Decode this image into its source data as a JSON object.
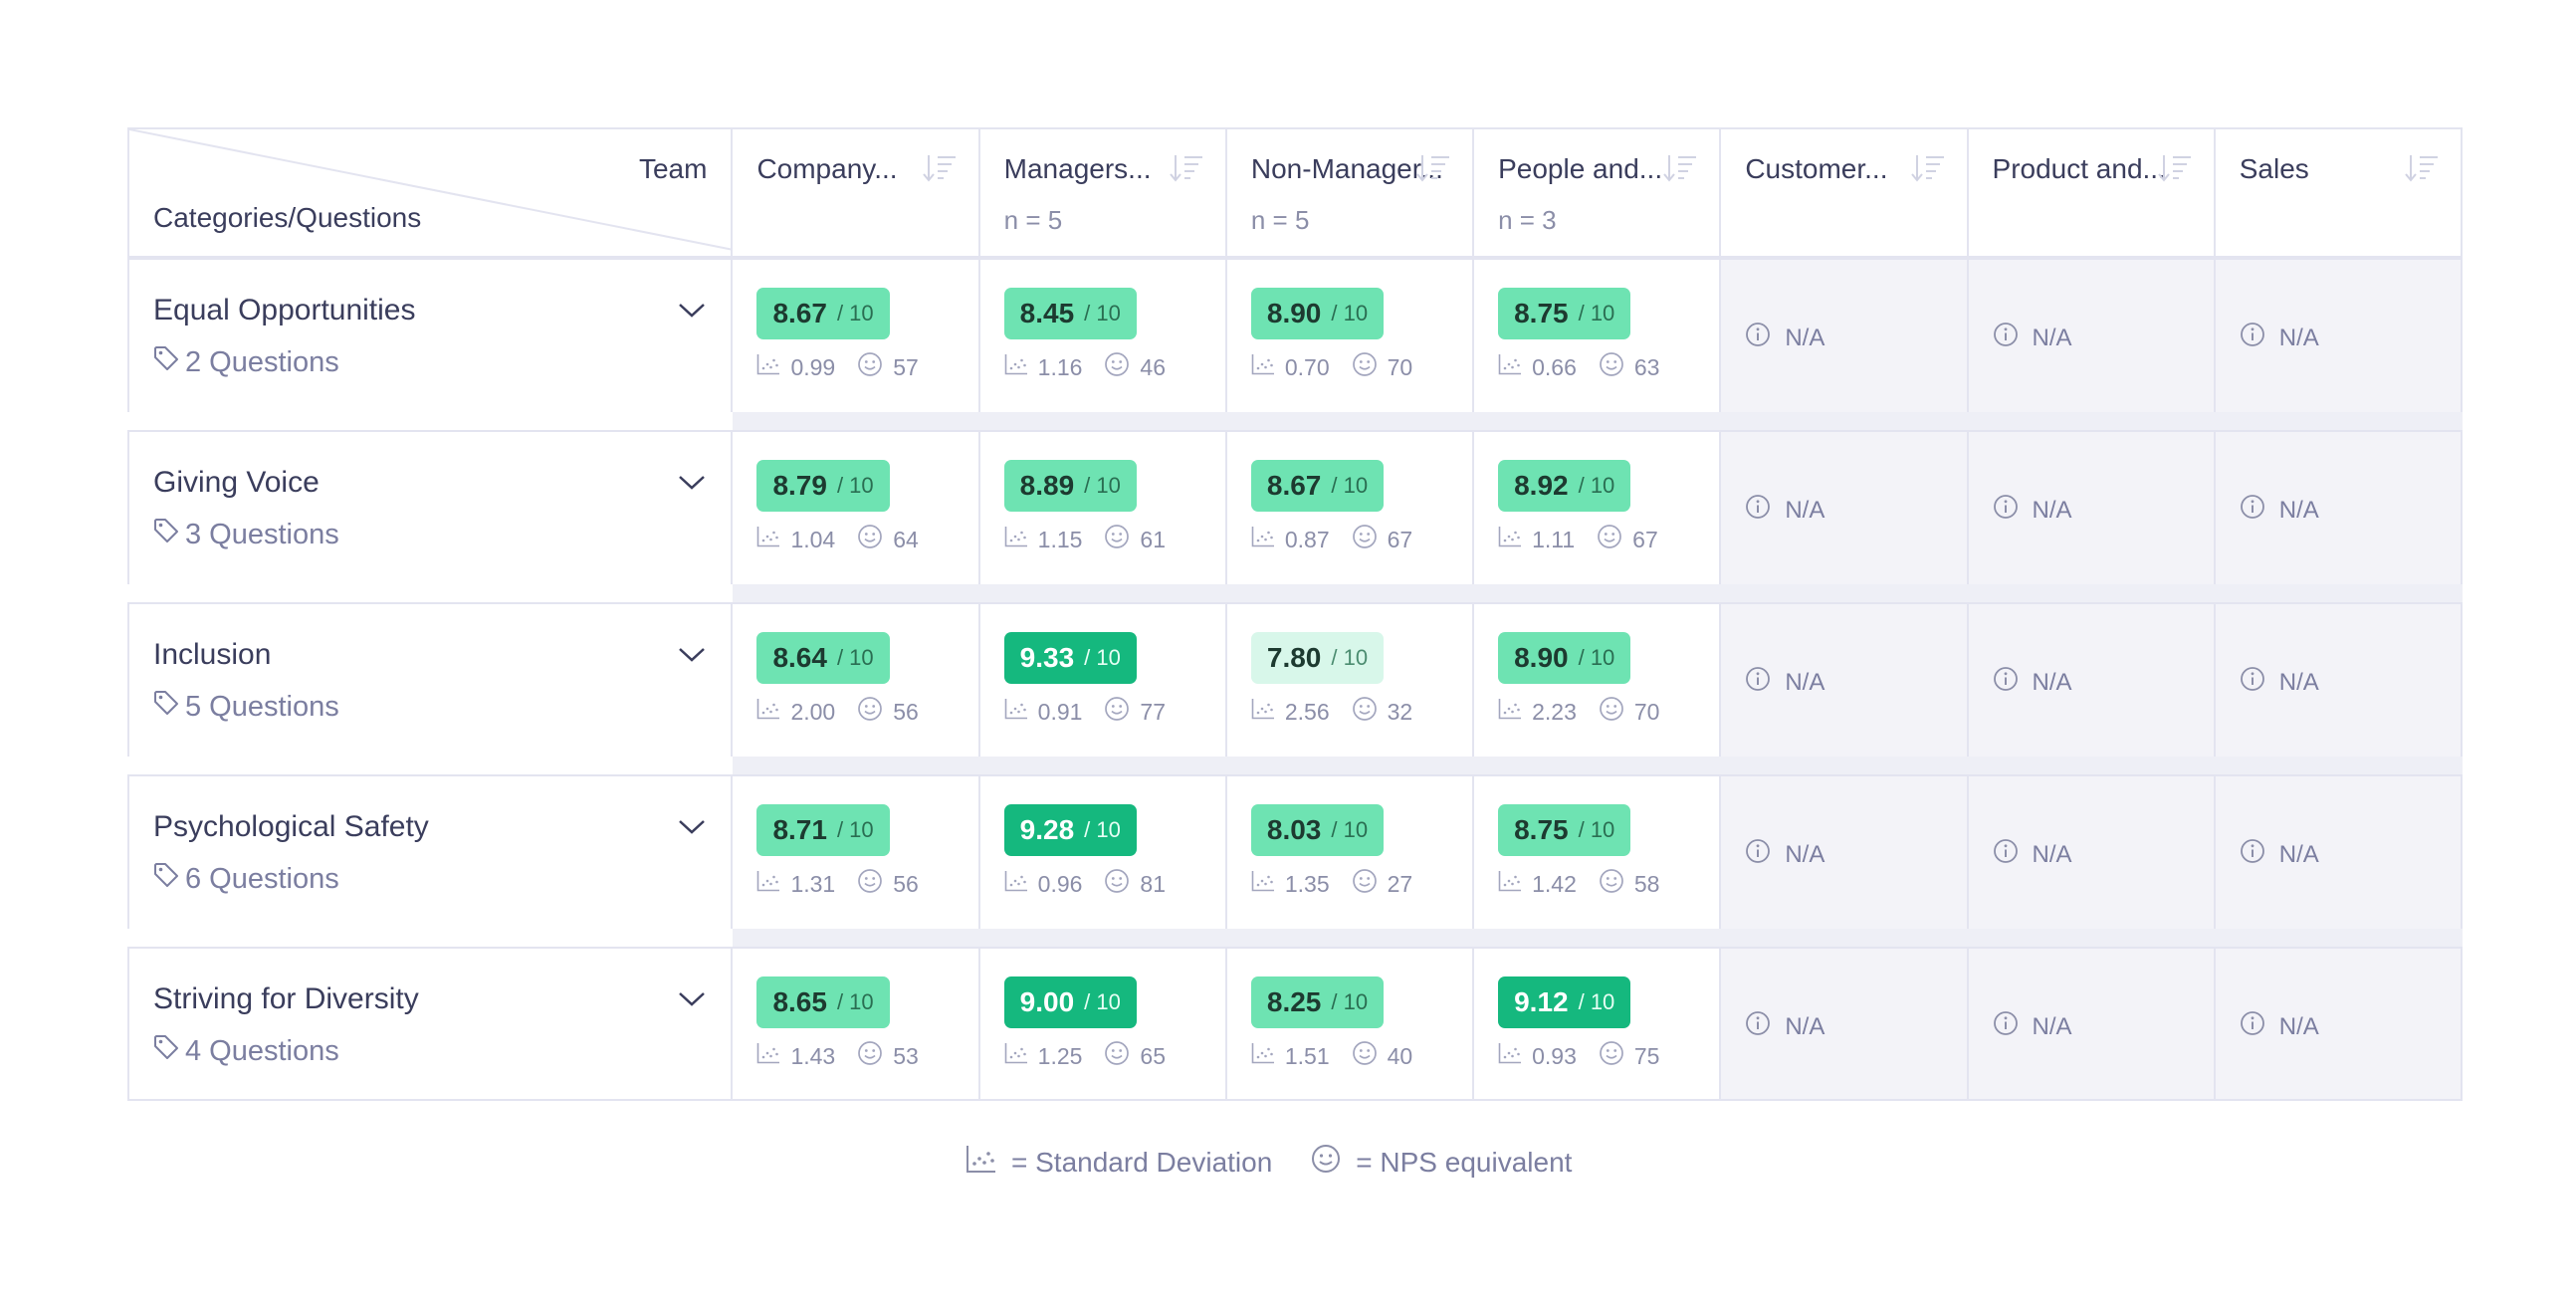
{
  "header": {
    "team_label": "Team",
    "categories_label": "Categories/Questions",
    "columns": [
      {
        "name": "Company...",
        "n": ""
      },
      {
        "name": "Managers...",
        "n": "n = 5"
      },
      {
        "name": "Non-Manager...",
        "n": "n = 5"
      },
      {
        "name": "People and...",
        "n": "n = 3"
      },
      {
        "name": "Customer...",
        "n": ""
      },
      {
        "name": "Product and...",
        "n": ""
      },
      {
        "name": "Sales",
        "n": ""
      }
    ]
  },
  "rows": [
    {
      "category": "Equal Opportunities",
      "questions": "2 Questions",
      "cells": [
        {
          "score": "8.67",
          "den": "/ 10",
          "sd": "0.99",
          "nps": "57",
          "level": "mid"
        },
        {
          "score": "8.45",
          "den": "/ 10",
          "sd": "1.16",
          "nps": "46",
          "level": "mid"
        },
        {
          "score": "8.90",
          "den": "/ 10",
          "sd": "0.70",
          "nps": "70",
          "level": "mid"
        },
        {
          "score": "8.75",
          "den": "/ 10",
          "sd": "0.66",
          "nps": "63",
          "level": "mid"
        },
        {
          "na": "N/A"
        },
        {
          "na": "N/A"
        },
        {
          "na": "N/A"
        }
      ]
    },
    {
      "category": "Giving Voice",
      "questions": "3 Questions",
      "cells": [
        {
          "score": "8.79",
          "den": "/ 10",
          "sd": "1.04",
          "nps": "64",
          "level": "mid"
        },
        {
          "score": "8.89",
          "den": "/ 10",
          "sd": "1.15",
          "nps": "61",
          "level": "mid"
        },
        {
          "score": "8.67",
          "den": "/ 10",
          "sd": "0.87",
          "nps": "67",
          "level": "mid"
        },
        {
          "score": "8.92",
          "den": "/ 10",
          "sd": "1.11",
          "nps": "67",
          "level": "mid"
        },
        {
          "na": "N/A"
        },
        {
          "na": "N/A"
        },
        {
          "na": "N/A"
        }
      ]
    },
    {
      "category": "Inclusion",
      "questions": "5 Questions",
      "cells": [
        {
          "score": "8.64",
          "den": "/ 10",
          "sd": "2.00",
          "nps": "56",
          "level": "mid"
        },
        {
          "score": "9.33",
          "den": "/ 10",
          "sd": "0.91",
          "nps": "77",
          "level": "high"
        },
        {
          "score": "7.80",
          "den": "/ 10",
          "sd": "2.56",
          "nps": "32",
          "level": "low"
        },
        {
          "score": "8.90",
          "den": "/ 10",
          "sd": "2.23",
          "nps": "70",
          "level": "mid"
        },
        {
          "na": "N/A"
        },
        {
          "na": "N/A"
        },
        {
          "na": "N/A"
        }
      ]
    },
    {
      "category": "Psychological Safety",
      "questions": "6 Questions",
      "cells": [
        {
          "score": "8.71",
          "den": "/ 10",
          "sd": "1.31",
          "nps": "56",
          "level": "mid"
        },
        {
          "score": "9.28",
          "den": "/ 10",
          "sd": "0.96",
          "nps": "81",
          "level": "high"
        },
        {
          "score": "8.03",
          "den": "/ 10",
          "sd": "1.35",
          "nps": "27",
          "level": "mid"
        },
        {
          "score": "8.75",
          "den": "/ 10",
          "sd": "1.42",
          "nps": "58",
          "level": "mid"
        },
        {
          "na": "N/A"
        },
        {
          "na": "N/A"
        },
        {
          "na": "N/A"
        }
      ]
    },
    {
      "category": "Striving for Diversity",
      "questions": "4 Questions",
      "cells": [
        {
          "score": "8.65",
          "den": "/ 10",
          "sd": "1.43",
          "nps": "53",
          "level": "mid"
        },
        {
          "score": "9.00",
          "den": "/ 10",
          "sd": "1.25",
          "nps": "65",
          "level": "high"
        },
        {
          "score": "8.25",
          "den": "/ 10",
          "sd": "1.51",
          "nps": "40",
          "level": "mid"
        },
        {
          "score": "9.12",
          "den": "/ 10",
          "sd": "0.93",
          "nps": "75",
          "level": "high"
        },
        {
          "na": "N/A"
        },
        {
          "na": "N/A"
        },
        {
          "na": "N/A"
        }
      ]
    }
  ],
  "legend": {
    "sd_label": "= Standard Deviation",
    "nps_label": "= NPS equivalent"
  },
  "colors": {
    "score_high": "#15b87e",
    "score_mid": "#6ee3b2",
    "score_low": "#d8f7ea",
    "na_background": "#f3f3f8",
    "border": "#e3e4f0"
  },
  "icons": {
    "sort": "sort-descending-icon",
    "expand": "chevron-down-icon",
    "tag": "tag-icon",
    "std_dev": "scatter-chart-icon",
    "nps": "smiley-icon",
    "info": "info-circle-icon"
  }
}
